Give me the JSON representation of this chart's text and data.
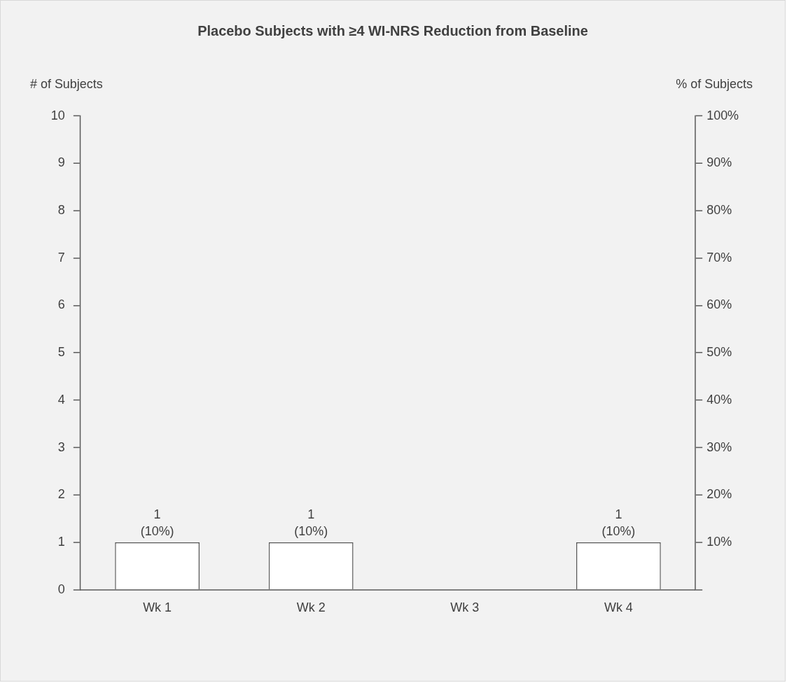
{
  "chart_data": {
    "type": "bar",
    "title": "Placebo Subjects with ≥4 WI-NRS Reduction from Baseline",
    "ylabel": "# of Subjects",
    "y2label": "% of Subjects",
    "categories": [
      "Wk 1",
      "Wk 2",
      "Wk 3",
      "Wk 4"
    ],
    "values": [
      1,
      1,
      0,
      1
    ],
    "color": "#ffffff",
    "value_labels": [
      "1\n(10%)",
      "1\n(10%)",
      null,
      "1\n(10%)"
    ],
    "ylim": [
      0,
      10
    ],
    "yticks": [
      0,
      1,
      2,
      3,
      4,
      5,
      6,
      7,
      8,
      9,
      10
    ],
    "y2lim": [
      0,
      100
    ],
    "y2ticks": [
      {
        "value": 0,
        "label": null
      },
      {
        "value": 10,
        "label": "10%"
      },
      {
        "value": 20,
        "label": "20%"
      },
      {
        "value": 30,
        "label": "30%"
      },
      {
        "value": 40,
        "label": "40%"
      },
      {
        "value": 50,
        "label": "50%"
      },
      {
        "value": 60,
        "label": "60%"
      },
      {
        "value": 70,
        "label": "70%"
      },
      {
        "value": 80,
        "label": "80%"
      },
      {
        "value": 90,
        "label": "90%"
      },
      {
        "value": 100,
        "label": "100%"
      }
    ],
    "grid": false,
    "legend": false
  }
}
